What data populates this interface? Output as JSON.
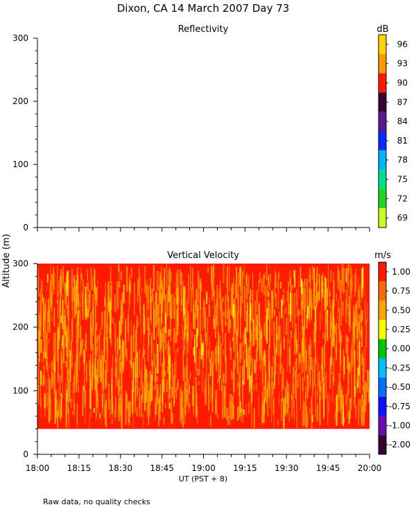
{
  "title": "Dixon, CA 14 March 2007  Day  73",
  "footnote": "Raw data, no quality checks",
  "ylabel": "Altitude (m)",
  "xlabel": "UT  (PST + 8)",
  "colors": {
    "velocity_red": "#ff1a00",
    "velocity_orange": "#ffa500",
    "velocity_yellow": "#ffff00"
  },
  "chart_data": [
    {
      "type": "heatmap",
      "title": "Reflectivity",
      "ylim": [
        0,
        300
      ],
      "yticks": [
        0,
        100,
        200,
        300
      ],
      "x_ticks": [
        "18:00",
        "18:15",
        "18:30",
        "18:45",
        "19:00",
        "19:15",
        "19:30",
        "19:45",
        "20:00"
      ],
      "data_present": false,
      "colorbar": {
        "unit": "dB",
        "labels": [
          "96",
          "93",
          "90",
          "87",
          "84",
          "81",
          "78",
          "75",
          "72",
          "69"
        ],
        "colors": [
          "#ffd400",
          "#ff9900",
          "#ff1a00",
          "#3a0030",
          "#5a1a8c",
          "#0a2aff",
          "#00b4ff",
          "#00e08a",
          "#20d820",
          "#c8ff20"
        ]
      }
    },
    {
      "type": "heatmap",
      "title": "Vertical Velocity",
      "ylim": [
        0,
        300
      ],
      "yticks": [
        0,
        100,
        200,
        300
      ],
      "x_ticks": [
        "18:00",
        "18:15",
        "18:30",
        "18:45",
        "19:00",
        "19:15",
        "19:30",
        "19:45",
        "20:00"
      ],
      "x_range": [
        "18:00",
        "20:00"
      ],
      "data_altitude_range_m": [
        40,
        300
      ],
      "dominant_value_m_s": 1.0,
      "secondary_values_m_s": [
        0.75,
        0.5
      ],
      "colorbar": {
        "unit": "m/s",
        "labels": [
          "1.00",
          "0.75",
          "0.50",
          "0.25",
          "0.00",
          "-0.25",
          "-0.50",
          "-0.75",
          "-1.00",
          "-2.00"
        ],
        "colors": [
          "#ff1a00",
          "#ff6a00",
          "#ffa500",
          "#ffff00",
          "#00c800",
          "#00c0ff",
          "#0070ff",
          "#1010ff",
          "#6a0ab0",
          "#3a0030"
        ]
      }
    }
  ]
}
